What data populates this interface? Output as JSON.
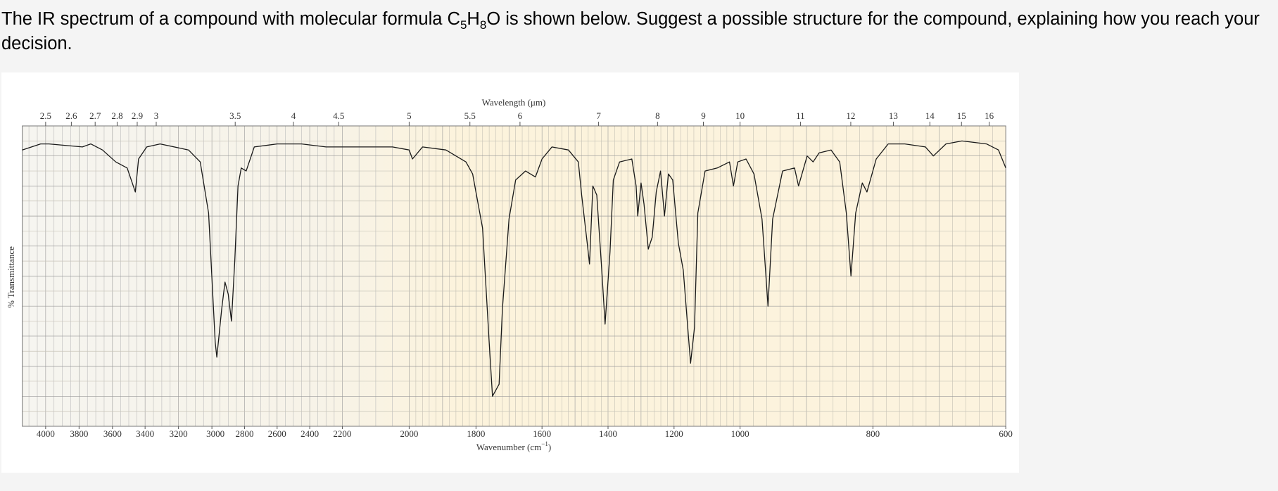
{
  "question": {
    "prefix": "The IR spectrum of a compound with molecular formula",
    "formula": [
      "C",
      "5",
      "H",
      "8",
      "O"
    ],
    "suffix": "is shown below. Suggest a possible structure for the compound, explaining how you reach your decision."
  },
  "chart_data": {
    "type": "line",
    "x2label": "Wavelength (μm)",
    "xlabel": [
      "Wavenumber (cm",
      "−1",
      ")"
    ],
    "ylabel": "% Transmittance",
    "xlim": [
      4140,
      600
    ],
    "ylim": [
      0,
      100
    ],
    "xticks": [
      4000,
      3800,
      3600,
      3400,
      3200,
      3000,
      2800,
      2600,
      2400,
      2200,
      2000,
      1800,
      1600,
      1400,
      1200,
      1000,
      800,
      600
    ],
    "x2ticks": [
      2.5,
      2.6,
      2.7,
      2.8,
      2.9,
      3,
      3.5,
      4,
      4.5,
      5,
      5.5,
      6,
      7,
      8,
      9,
      10,
      11,
      12,
      13,
      14,
      15,
      16
    ],
    "color": "#1a1a1a",
    "x": [
      4140,
      4030,
      3980,
      3780,
      3730,
      3660,
      3580,
      3510,
      3460,
      3440,
      3390,
      3310,
      3140,
      3070,
      3020,
      2980,
      2970,
      2940,
      2920,
      2900,
      2880,
      2860,
      2840,
      2820,
      2790,
      2740,
      2600,
      2450,
      2300,
      2200,
      2150,
      2050,
      2000,
      1990,
      1960,
      1890,
      1830,
      1810,
      1780,
      1760,
      1750,
      1730,
      1720,
      1700,
      1680,
      1650,
      1620,
      1600,
      1570,
      1520,
      1490,
      1480,
      1463,
      1456,
      1446,
      1434,
      1419,
      1409,
      1394,
      1384,
      1365,
      1328,
      1315,
      1310,
      1300,
      1291,
      1278,
      1266,
      1254,
      1241,
      1229,
      1217,
      1204,
      1187,
      1172,
      1155,
      1150,
      1138,
      1128,
      1106,
      1069,
      1032,
      1020,
      1007,
      991,
      979,
      967,
      958,
      951,
      936,
      918,
      912,
      899,
      890,
      881,
      863,
      850,
      840,
      833,
      826,
      816,
      809,
      795,
      777,
      752,
      721,
      709,
      690,
      666,
      629,
      611,
      600
    ],
    "values": [
      92,
      94,
      94,
      93,
      94,
      92,
      88,
      86,
      78,
      89,
      93,
      94,
      92,
      88,
      71,
      28,
      23,
      39,
      48,
      44,
      35,
      55,
      80,
      86,
      85,
      93,
      94,
      94,
      93,
      93,
      93,
      93,
      92,
      89,
      93,
      92,
      88,
      84,
      66,
      28,
      10,
      14,
      39,
      69,
      82,
      85,
      83,
      89,
      93,
      92,
      88,
      77,
      61,
      54,
      80,
      77,
      52,
      34,
      58,
      82,
      88,
      89,
      80,
      70,
      81,
      74,
      59,
      63,
      78,
      85,
      70,
      84,
      82,
      61,
      52,
      28,
      21,
      33,
      71,
      85,
      86,
      88,
      80,
      88,
      89,
      84,
      69,
      40,
      69,
      85,
      86,
      80,
      90,
      88,
      91,
      92,
      88,
      71,
      50,
      71,
      81,
      78,
      89,
      94,
      94,
      93,
      90,
      94,
      95,
      94,
      92,
      86
    ]
  }
}
